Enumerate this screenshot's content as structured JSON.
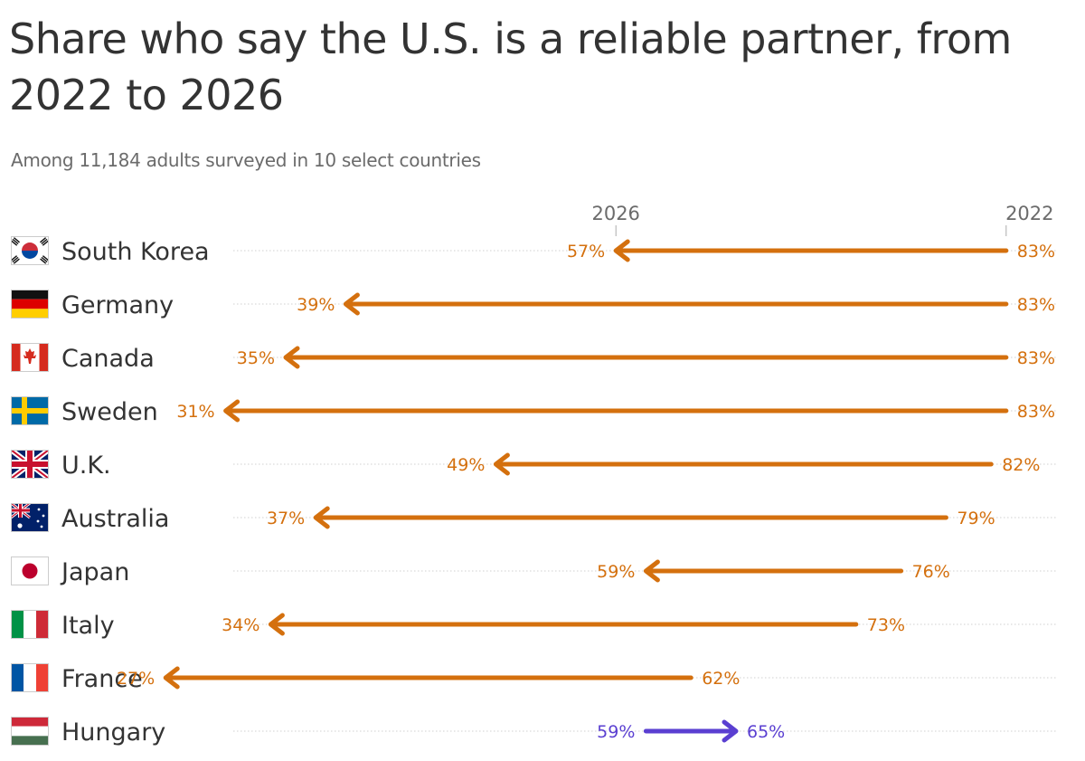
{
  "chart_data": {
    "type": "arrow",
    "title": "Share who say the U.S. is a reliable partner, from 2022 to 2026",
    "subtitle": "Among 11,184 adults surveyed in 10 select countries",
    "start_label": "2022",
    "end_label": "2026",
    "unit": "%",
    "colors": {
      "decline": "#d4700e",
      "increase": "#5a3fd1",
      "text": "#333333",
      "muted": "#6b6b6b"
    },
    "rows": [
      {
        "country": "South Korea",
        "flag": "south-korea-flag-icon",
        "v2022": 83,
        "v2026": 57
      },
      {
        "country": "Germany",
        "flag": "germany-flag-icon",
        "v2022": 83,
        "v2026": 39
      },
      {
        "country": "Canada",
        "flag": "canada-flag-icon",
        "v2022": 83,
        "v2026": 35
      },
      {
        "country": "Sweden",
        "flag": "sweden-flag-icon",
        "v2022": 83,
        "v2026": 31
      },
      {
        "country": "U.K.",
        "flag": "uk-flag-icon",
        "v2022": 82,
        "v2026": 49
      },
      {
        "country": "Australia",
        "flag": "australia-flag-icon",
        "v2022": 79,
        "v2026": 37
      },
      {
        "country": "Japan",
        "flag": "japan-flag-icon",
        "v2022": 76,
        "v2026": 59
      },
      {
        "country": "Italy",
        "flag": "italy-flag-icon",
        "v2022": 73,
        "v2026": 34
      },
      {
        "country": "France",
        "flag": "france-flag-icon",
        "v2022": 62,
        "v2026": 27
      },
      {
        "country": "Hungary",
        "flag": "hungary-flag-icon",
        "v2022": 59,
        "v2026": 65
      }
    ]
  }
}
